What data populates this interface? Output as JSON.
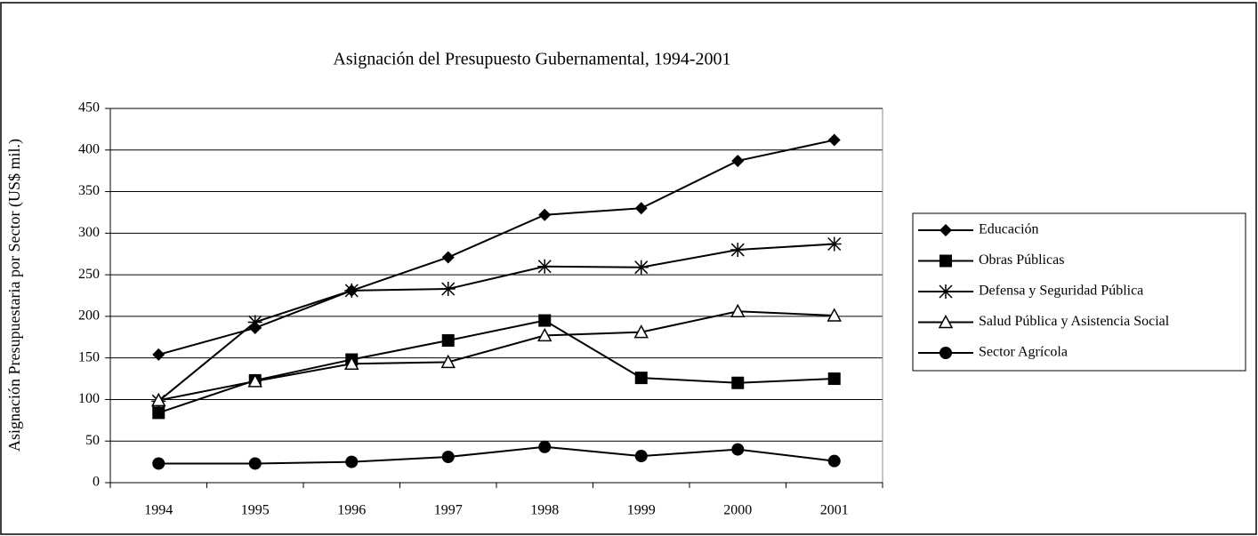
{
  "chart_data": {
    "type": "line",
    "title": "Asignación del Presupuesto Gubernamental, 1994-2001",
    "y_label": "Asignación Presupuestaria por Sector (US$ mil.)",
    "categories": [
      "1994",
      "1995",
      "1996",
      "1997",
      "1998",
      "1999",
      "2000",
      "2001"
    ],
    "series": [
      {
        "name": "Educación",
        "color": "#000000",
        "marker": "diamond",
        "values": [
          154,
          186,
          231,
          271,
          322,
          330,
          387,
          412
        ]
      },
      {
        "name": "Obras Públicas",
        "color": "#000000",
        "marker": "square",
        "values": [
          84,
          123,
          148,
          171,
          195,
          126,
          120,
          125
        ]
      },
      {
        "name": "Defensa y Seguridad Pública",
        "color": "#000000",
        "marker": "asterisk",
        "values": [
          98,
          193,
          231,
          233,
          260,
          259,
          280,
          287
        ]
      },
      {
        "name": "Salud Pública y Asistencia Social",
        "color": "#000000",
        "marker": "triangle",
        "values": [
          99,
          122,
          143,
          145,
          177,
          181,
          206,
          201
        ]
      },
      {
        "name": "Sector Agrícola",
        "color": "#000000",
        "marker": "circle",
        "values": [
          23,
          23,
          25,
          31,
          43,
          32,
          40,
          26
        ]
      }
    ],
    "ylim": [
      0,
      450
    ],
    "yticks": [
      0,
      50,
      100,
      150,
      200,
      250,
      300,
      350,
      400,
      450
    ],
    "grid": true,
    "legend": "right"
  }
}
